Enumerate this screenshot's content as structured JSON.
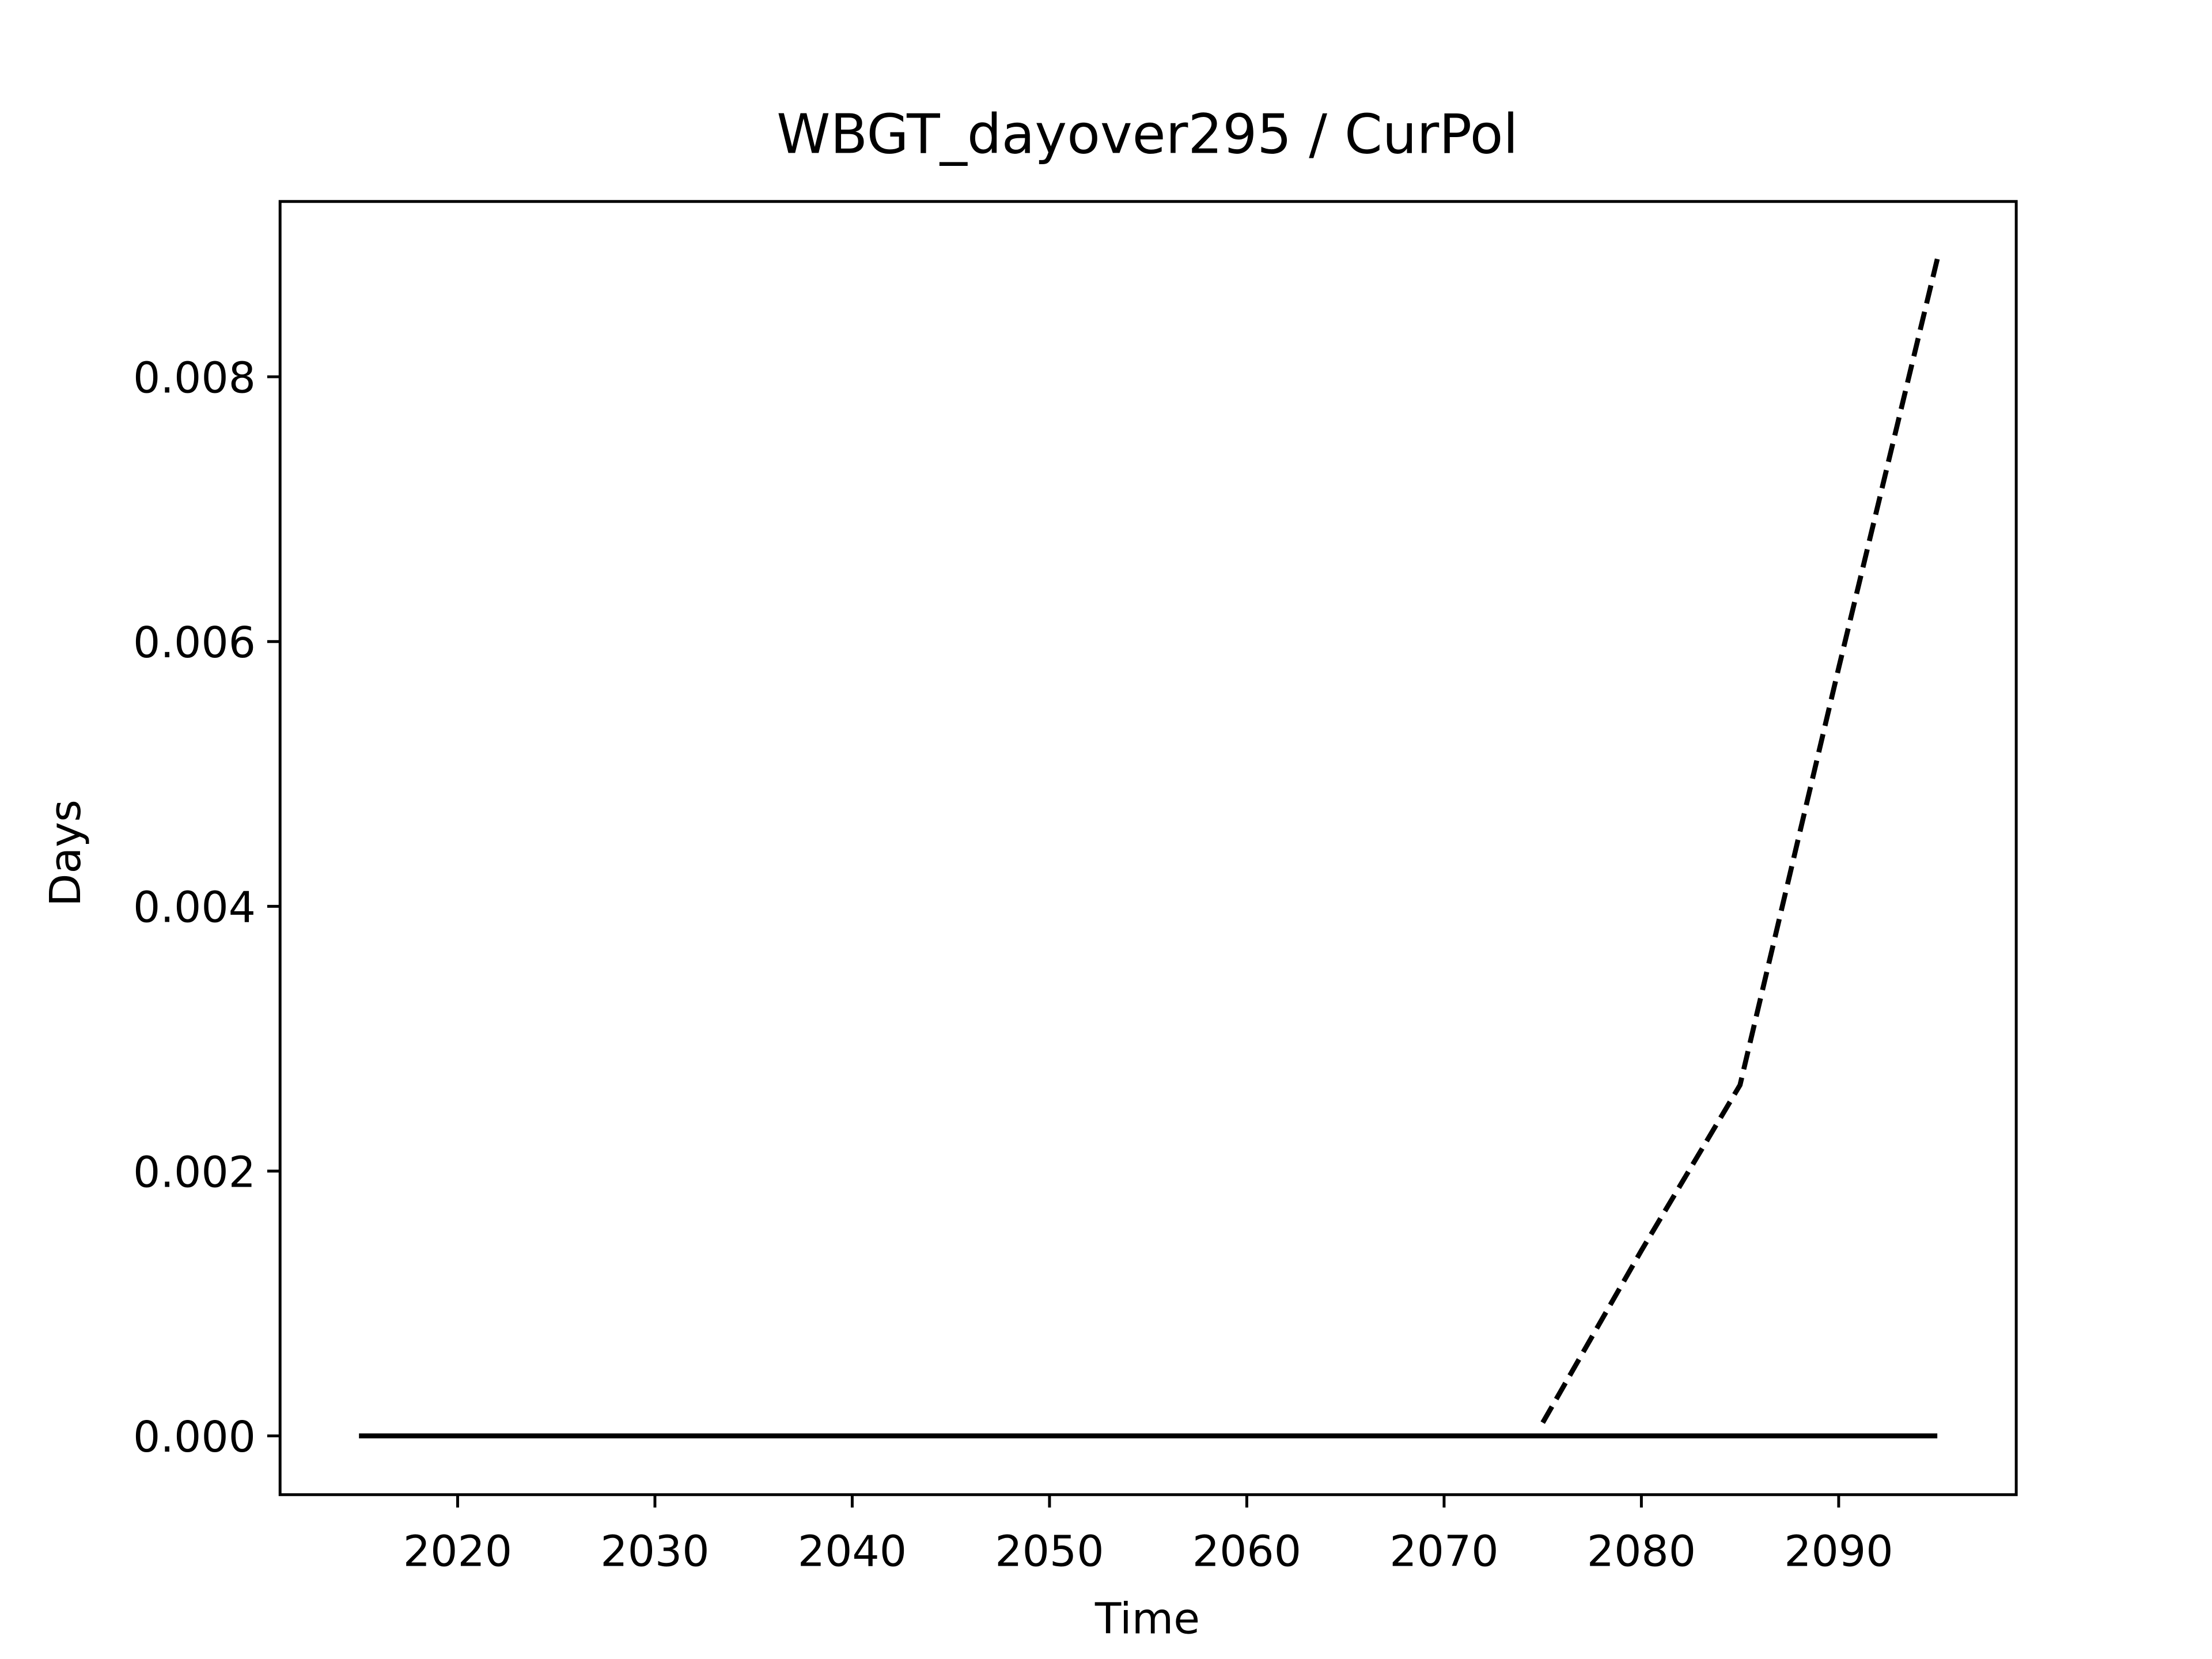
{
  "chart_data": {
    "type": "line",
    "title": "WBGT_dayover295 / CurPol",
    "x_label": "Time",
    "y_label": "Days",
    "x": [
      2015,
      2020,
      2025,
      2030,
      2035,
      2040,
      2045,
      2050,
      2055,
      2060,
      2065,
      2070,
      2075,
      2080,
      2085,
      2090,
      2095
    ],
    "series": [
      {
        "color": "#000000",
        "dash": "solid",
        "values": [
          0,
          0,
          0,
          0,
          0,
          0,
          0,
          0,
          0,
          0,
          0,
          0,
          0,
          0,
          0,
          0,
          0
        ]
      },
      {
        "color": "#000000",
        "dash": "dashed",
        "values": [
          null,
          null,
          null,
          null,
          null,
          null,
          null,
          null,
          null,
          null,
          null,
          null,
          0.0001,
          0.0014,
          0.00265,
          0.0058,
          0.00889
        ]
      }
    ],
    "xlim": [
      2011,
      2099
    ],
    "xticks": [
      2020,
      2030,
      2040,
      2050,
      2060,
      2070,
      2080,
      2090
    ],
    "ylim": [
      -0.000444,
      0.009324
    ],
    "yticks": [
      {
        "value": 0,
        "label": "0.000"
      },
      {
        "value": 0.002,
        "label": "0.002"
      },
      {
        "value": 0.004,
        "label": "0.004"
      },
      {
        "value": 0.006,
        "label": "0.006"
      },
      {
        "value": 0.008,
        "label": "0.008"
      }
    ],
    "grid": false
  }
}
